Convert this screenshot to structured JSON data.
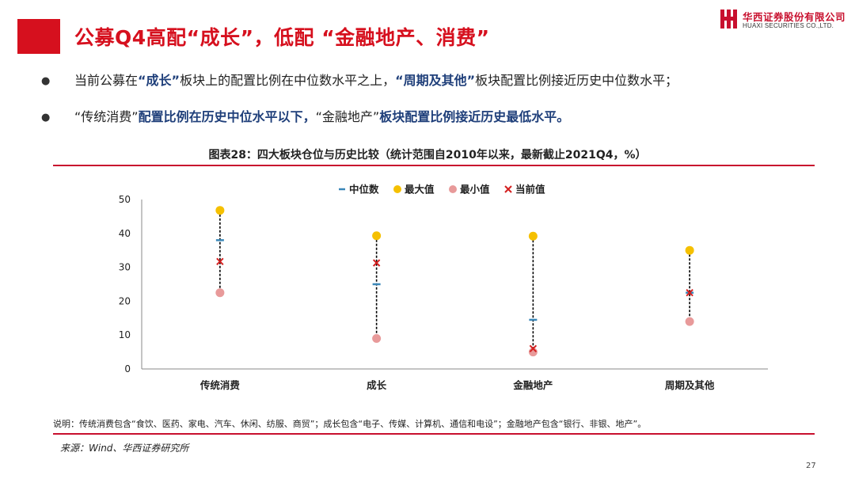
{
  "header": {
    "title": "公募Q4高配“成长”，低配 “金融地产、消费”",
    "logo_cn": "华西证券股份有限公司",
    "logo_en": "HUAXI SECURITIES CO.,LTD."
  },
  "bullets": [
    {
      "segments": [
        {
          "text": "当前公募在",
          "hl": false
        },
        {
          "text": "“成长”",
          "hl": true
        },
        {
          "text": "板块上的配置比例在中位数水平之上，",
          "hl": false
        },
        {
          "text": "“周期及其他”",
          "hl": true
        },
        {
          "text": "板块配置比例接近历史中位数水平；",
          "hl": false
        }
      ]
    },
    {
      "segments": [
        {
          "text": "“传统消费”",
          "hl": true
        },
        {
          "text": "配置比例在历史中位水平以下，",
          "hl": false
        },
        {
          "text": "“金融地产”",
          "hl": true
        },
        {
          "text": "板块配置比例接近历史最低水平。",
          "hl": false
        }
      ]
    }
  ],
  "figure": {
    "caption": "图表28：四大板块仓位与历史比较（统计范围自2010年以来，最新截止2021Q4，%）",
    "note": "说明：传统消费包含“食饮、医药、家电、汽车、休闲、纺服、商贸”；成长包含“电子、传媒、计算机、通信和电设”；金融地产包含“银行、非银、地产”。",
    "source": "来源：Wind、华西证券研究所"
  },
  "chart_data": {
    "type": "scatter",
    "categories": [
      "传统消费",
      "成长",
      "金融地产",
      "周期及其他"
    ],
    "series": [
      {
        "name": "中位数",
        "values": [
          38,
          25,
          14.5,
          22.5
        ]
      },
      {
        "name": "最大值",
        "values": [
          46.8,
          39.3,
          39.2,
          35
        ]
      },
      {
        "name": "最小值",
        "values": [
          22.5,
          9,
          5,
          14
        ]
      },
      {
        "name": "当前值",
        "values": [
          31.7,
          31.3,
          6,
          22.5
        ]
      }
    ],
    "ylim": [
      0,
      50
    ],
    "yticks": [
      "0",
      "10",
      "20",
      "30",
      "40",
      "50"
    ],
    "legend": "top-center",
    "grid": false,
    "colors": {
      "median": "#3a87b8",
      "max": "#f5c000",
      "min": "#e89a9a",
      "current": "#d42020",
      "range_line": "#000000"
    }
  },
  "page_number": "27"
}
